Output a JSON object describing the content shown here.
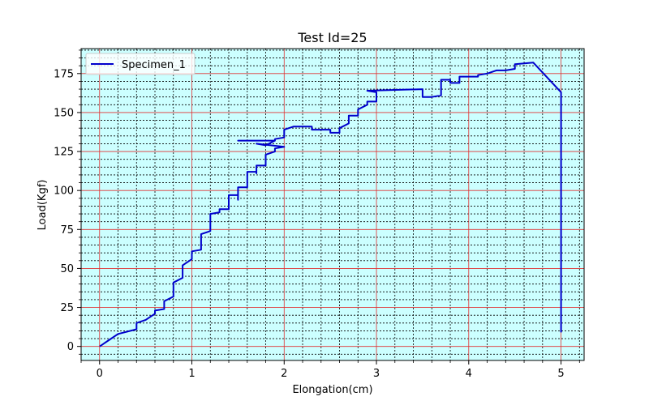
{
  "chart_data": {
    "type": "line",
    "title": "Test Id=25",
    "xlabel": "Elongation(cm)",
    "ylabel": "Load(Kgf)",
    "xlim": [
      -0.2,
      5.25
    ],
    "ylim": [
      -9,
      191
    ],
    "x_ticks": [
      0,
      1,
      2,
      3,
      4,
      5
    ],
    "x_tick_labels": [
      "0",
      "1",
      "2",
      "3",
      "4",
      "5"
    ],
    "y_ticks": [
      0,
      25,
      50,
      75,
      100,
      125,
      150,
      175
    ],
    "y_tick_labels": [
      "0",
      "25",
      "50",
      "75",
      "100",
      "125",
      "150",
      "175"
    ],
    "major_grid": true,
    "minor_grid": true,
    "legend_position": "top-left",
    "colors": {
      "background": "#ccffff",
      "major_grid": "#e03030",
      "minor_grid": "#000000",
      "line": "#0000cc"
    },
    "series": [
      {
        "name": "Specimen_1",
        "points": [
          [
            0,
            0
          ],
          [
            0.1,
            4
          ],
          [
            0.2,
            8
          ],
          [
            0.4,
            11
          ],
          [
            0.4,
            15
          ],
          [
            0.5,
            17
          ],
          [
            0.6,
            21
          ],
          [
            0.6,
            23
          ],
          [
            0.7,
            24
          ],
          [
            0.7,
            29
          ],
          [
            0.8,
            32
          ],
          [
            0.8,
            41
          ],
          [
            0.9,
            44
          ],
          [
            0.9,
            52
          ],
          [
            1.0,
            56
          ],
          [
            1.0,
            61
          ],
          [
            1.1,
            62
          ],
          [
            1.1,
            72
          ],
          [
            1.2,
            74
          ],
          [
            1.2,
            85
          ],
          [
            1.3,
            86
          ],
          [
            1.3,
            88
          ],
          [
            1.4,
            88
          ],
          [
            1.4,
            97
          ],
          [
            1.5,
            97
          ],
          [
            1.5,
            94
          ],
          [
            1.5,
            102
          ],
          [
            1.6,
            102
          ],
          [
            1.6,
            112
          ],
          [
            1.7,
            112
          ],
          [
            1.7,
            111
          ],
          [
            1.7,
            116
          ],
          [
            1.8,
            116
          ],
          [
            1.8,
            123
          ],
          [
            1.9,
            125
          ],
          [
            1.9,
            127
          ],
          [
            2.0,
            128
          ],
          [
            1.7,
            130
          ],
          [
            1.8,
            129
          ],
          [
            1.9,
            132
          ],
          [
            1.5,
            132
          ],
          [
            1.9,
            132
          ],
          [
            1.9,
            133
          ],
          [
            2.0,
            134
          ],
          [
            2.0,
            139
          ],
          [
            2.1,
            141
          ],
          [
            2.3,
            141
          ],
          [
            2.3,
            139
          ],
          [
            2.5,
            139
          ],
          [
            2.5,
            137
          ],
          [
            2.6,
            137
          ],
          [
            2.6,
            140
          ],
          [
            2.7,
            143
          ],
          [
            2.7,
            148
          ],
          [
            2.8,
            148
          ],
          [
            2.8,
            152
          ],
          [
            2.9,
            155
          ],
          [
            2.9,
            157
          ],
          [
            3.0,
            157
          ],
          [
            3.0,
            163
          ],
          [
            2.9,
            164
          ],
          [
            3.5,
            165
          ],
          [
            3.5,
            160
          ],
          [
            3.6,
            160
          ],
          [
            3.7,
            161
          ],
          [
            3.7,
            171
          ],
          [
            3.8,
            171
          ],
          [
            3.8,
            169
          ],
          [
            3.9,
            169
          ],
          [
            3.9,
            173
          ],
          [
            4.1,
            173
          ],
          [
            4.1,
            174
          ],
          [
            4.2,
            175
          ],
          [
            4.3,
            177
          ],
          [
            4.4,
            177
          ],
          [
            4.5,
            178
          ],
          [
            4.5,
            181
          ],
          [
            4.7,
            182
          ],
          [
            5.0,
            163
          ],
          [
            5.0,
            9
          ]
        ]
      }
    ]
  }
}
